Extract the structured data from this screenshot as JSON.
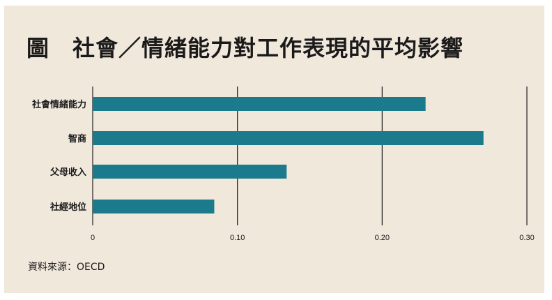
{
  "title": "圖　社會／情緒能力對工作表現的平均影響",
  "source": "資料來源：OECD",
  "colors": {
    "background": "#f1e8dc",
    "bar": "#1b7b8c",
    "grid": "#222222"
  },
  "chart_data": {
    "type": "bar",
    "orientation": "horizontal",
    "categories": [
      "社會情緒能力",
      "智商",
      "父母收入",
      "社經地位"
    ],
    "values": [
      0.23,
      0.27,
      0.134,
      0.084
    ],
    "xlim": [
      0,
      0.3
    ],
    "xticks": [
      "0",
      "0.10",
      "0.20",
      "0.30"
    ],
    "grid": "vertical",
    "title": "圖　社會／情緒能力對工作表現的平均影響",
    "xlabel": "",
    "ylabel": ""
  }
}
